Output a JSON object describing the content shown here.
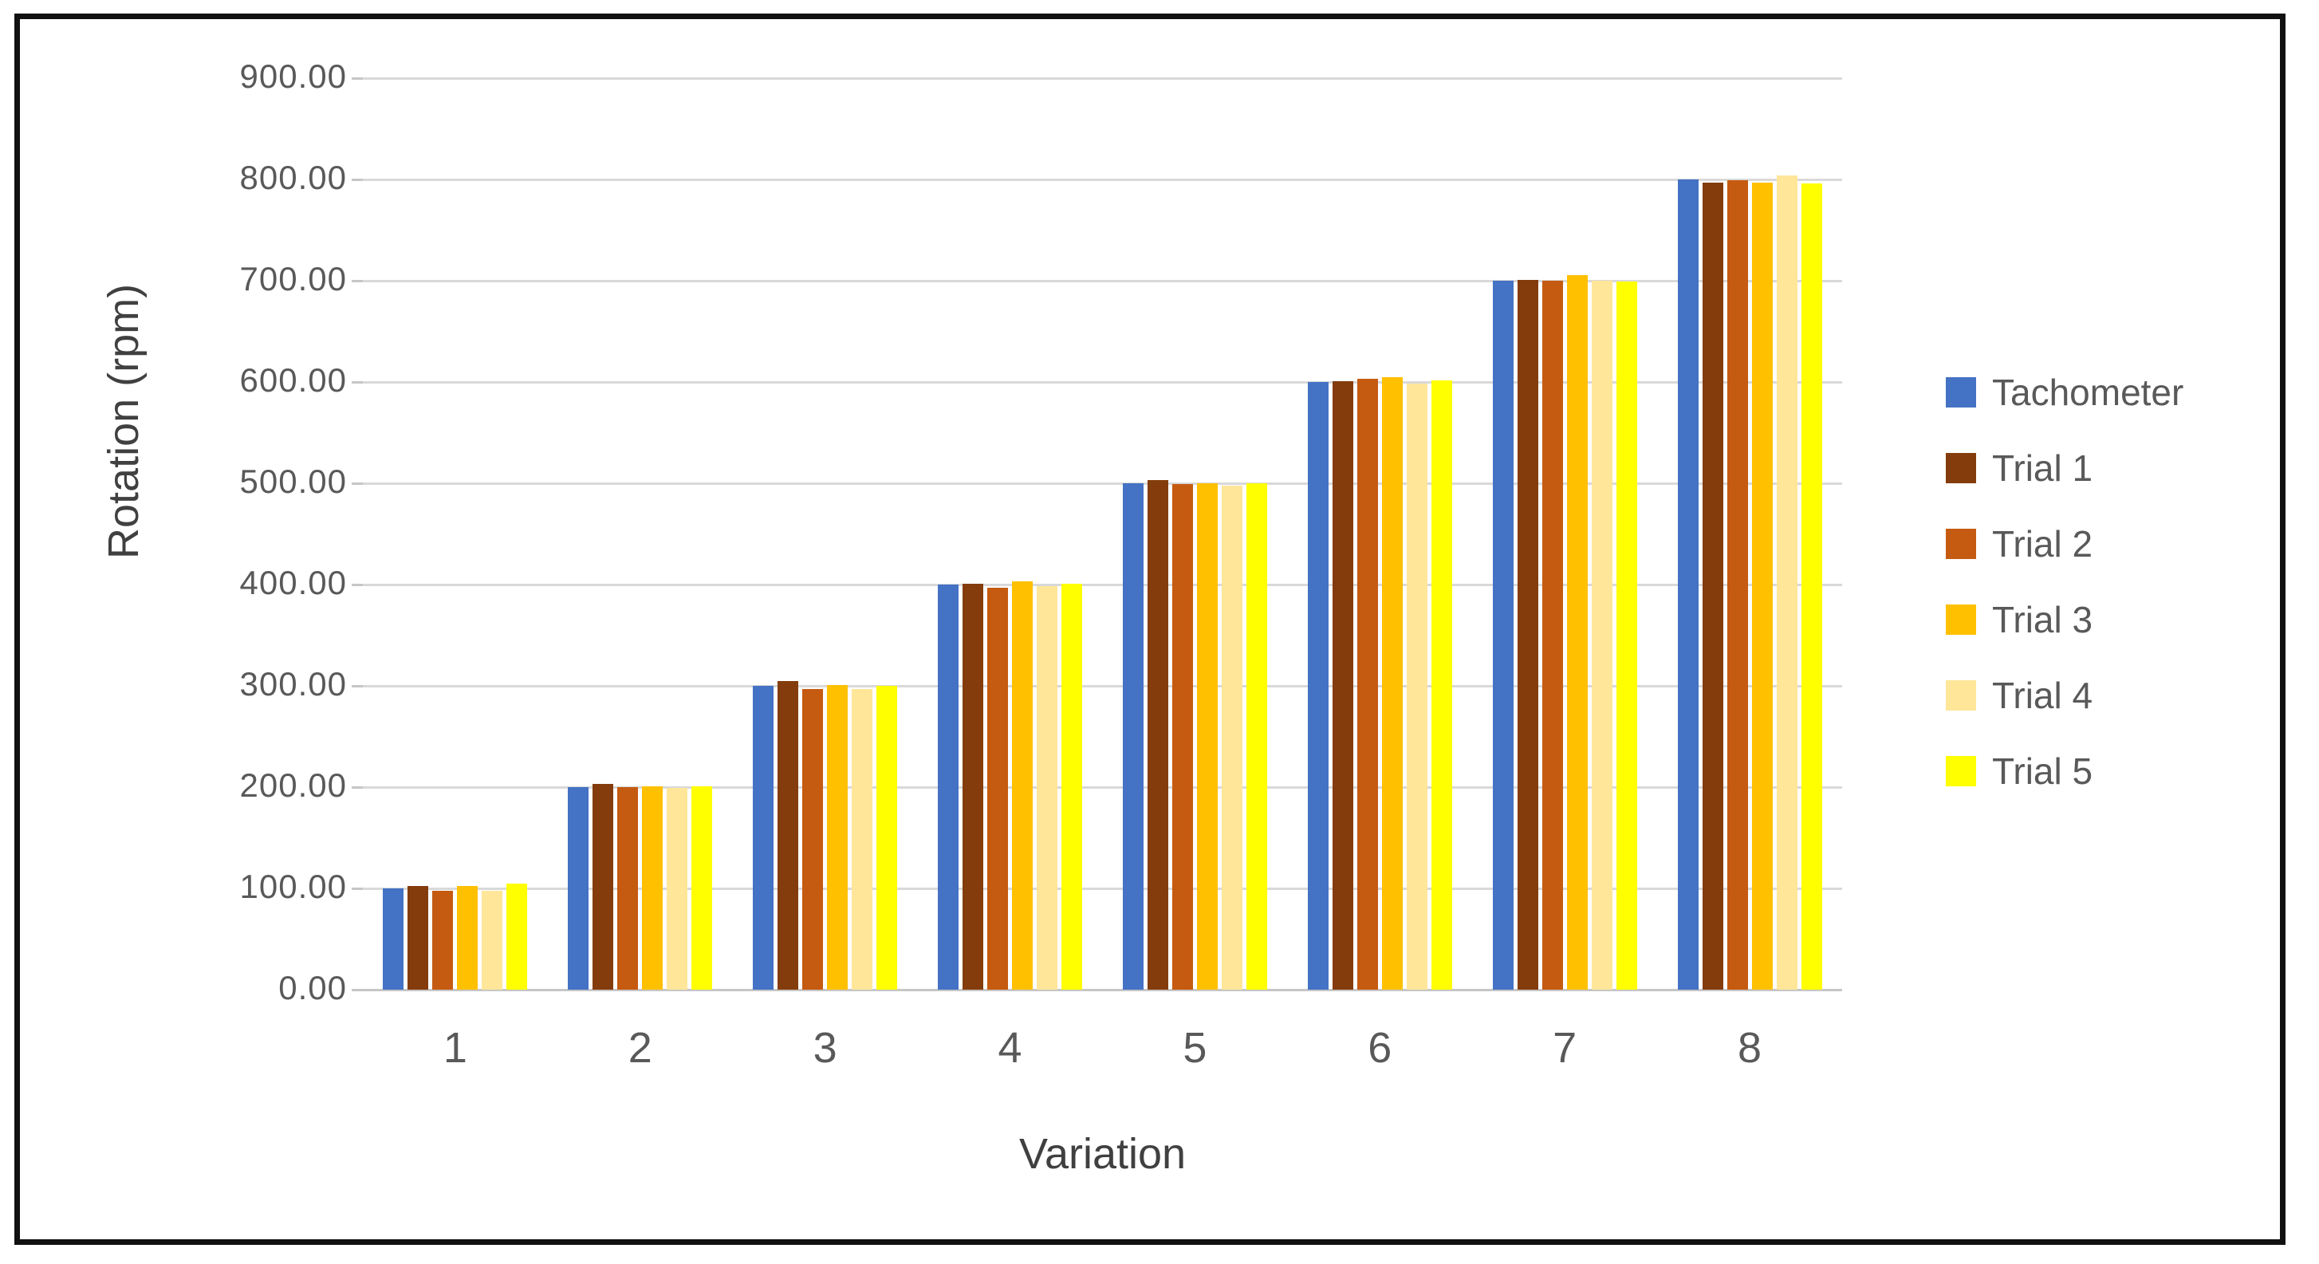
{
  "chart_data": {
    "type": "bar",
    "title": "",
    "xlabel": "Variation",
    "ylabel": "Rotation (rpm)",
    "categories": [
      "1",
      "2",
      "3",
      "4",
      "5",
      "6",
      "7",
      "8"
    ],
    "series": [
      {
        "name": "Tachometer",
        "color": "#4472C4",
        "values": [
          100.0,
          200.0,
          300.0,
          400.0,
          500.0,
          600.0,
          700.0,
          800.0
        ]
      },
      {
        "name": "Trial 1",
        "color": "#843C0C",
        "values": [
          102.0,
          203.5,
          305.0,
          400.5,
          503.5,
          601.0,
          700.5,
          797.0
        ]
      },
      {
        "name": "Trial 2",
        "color": "#C55A11",
        "values": [
          98.0,
          200.0,
          296.5,
          397.0,
          499.0,
          603.0,
          700.0,
          799.0
        ]
      },
      {
        "name": "Trial 3",
        "color": "#FFC000",
        "values": [
          102.0,
          201.0,
          301.0,
          403.0,
          500.0,
          605.0,
          705.5,
          797.0
        ]
      },
      {
        "name": "Trial 4",
        "color": "#FFE699",
        "values": [
          98.0,
          199.5,
          297.0,
          398.5,
          498.0,
          598.5,
          700.0,
          804.0
        ]
      },
      {
        "name": "Trial 5",
        "color": "#FFFF00",
        "values": [
          105.0,
          201.0,
          300.0,
          400.5,
          500.0,
          601.5,
          699.0,
          796.0
        ]
      }
    ],
    "ylim": [
      0,
      900
    ],
    "ytick_step": 100,
    "ytick_labels": [
      "0.00",
      "100.00",
      "200.00",
      "300.00",
      "400.00",
      "500.00",
      "600.00",
      "700.00",
      "800.00",
      "900.00"
    ],
    "grid": true,
    "legend_position": "right"
  },
  "style": {
    "grid_color": "#d9d9d9",
    "axis_text_color": "#595959",
    "title_text_color": "#404040",
    "frame_border_color": "#111111",
    "background": "#ffffff"
  }
}
